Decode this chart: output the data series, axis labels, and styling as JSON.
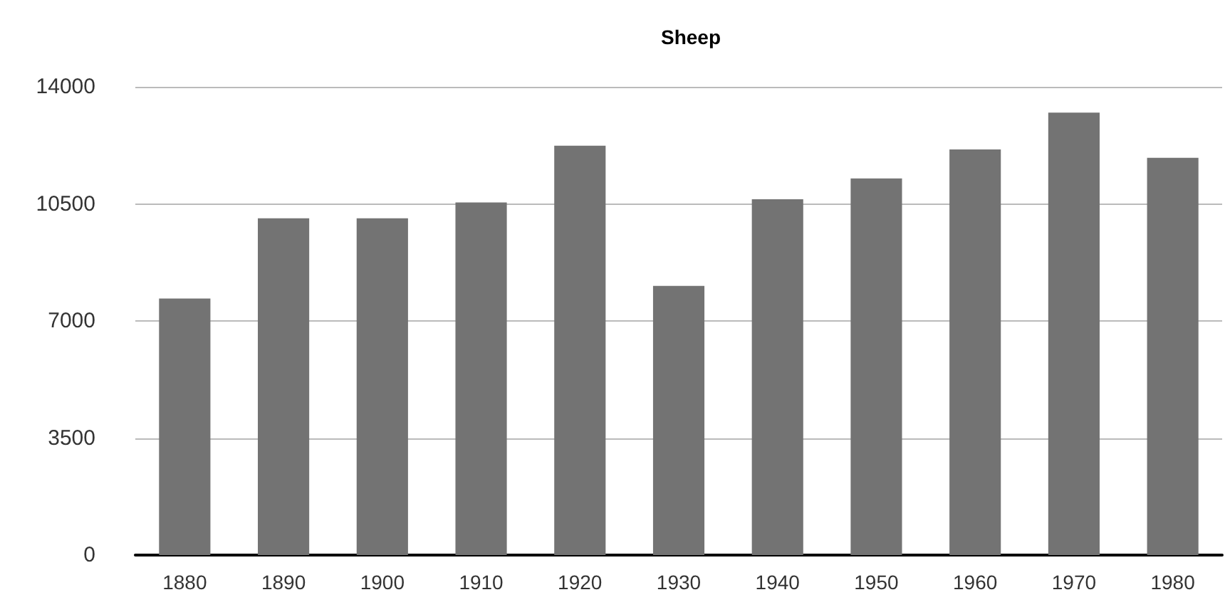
{
  "chart_data": {
    "type": "bar",
    "title": "Sheep",
    "categories": [
      "1880",
      "1890",
      "1900",
      "1910",
      "1920",
      "1930",
      "1940",
      "1950",
      "1960",
      "1970",
      "1980"
    ],
    "values": [
      7670,
      10070,
      10070,
      10540,
      12240,
      8050,
      10640,
      11260,
      12130,
      13230,
      11880
    ],
    "color": "#737373",
    "ylim": [
      0,
      14000
    ],
    "yticks": [
      0,
      3500,
      7000,
      10500,
      14000
    ],
    "grid": "y"
  }
}
